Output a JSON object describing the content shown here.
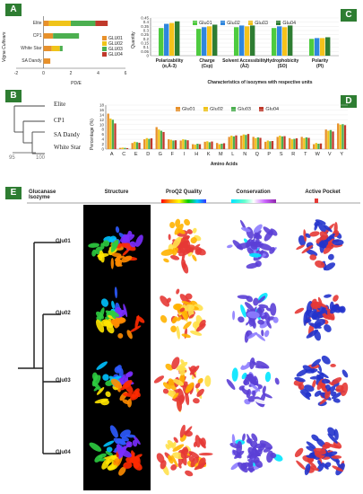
{
  "panel_a": {
    "label": "A",
    "ylabel": "Vigna Cultivars",
    "xlabel": "PD/E",
    "xticks": [
      "-2",
      "0",
      "2",
      "4",
      "6"
    ],
    "legend": [
      {
        "name": "GLU01",
        "color": "#e8912b"
      },
      {
        "name": "GLU02",
        "color": "#f0c419"
      },
      {
        "name": "GLU03",
        "color": "#4caf50"
      },
      {
        "name": "GLU04",
        "color": "#c0392b"
      }
    ],
    "chart_data": {
      "type": "bar",
      "orientation": "horizontal",
      "stacked": true,
      "categories": [
        "Elite",
        "CP1",
        "White Star",
        "SA Dandy"
      ],
      "xlim": [
        -2,
        6
      ],
      "series": [
        {
          "name": "GLU01",
          "values": [
            0.4,
            0.7,
            0.6,
            0.5
          ]
        },
        {
          "name": "GLU02",
          "values": [
            1.6,
            0.0,
            0.6,
            0.0
          ]
        },
        {
          "name": "GLU03",
          "values": [
            1.8,
            1.9,
            0.2,
            0.0
          ]
        },
        {
          "name": "GLU04",
          "values": [
            0.9,
            0.0,
            0.0,
            0.0
          ]
        }
      ]
    }
  },
  "panel_b": {
    "label": "B",
    "leaves": [
      "Elite",
      "CP1",
      "SA Dandy",
      "White Star"
    ],
    "scale": [
      "95",
      "100"
    ]
  },
  "panel_c": {
    "label": "C",
    "ylabel": "Quantity",
    "xlabel": "Characteristics of isozymes with respective units",
    "yticks": [
      "0",
      "0.05",
      "0.1",
      "0.15",
      "0.2",
      "0.25",
      "0.3",
      "0.35",
      "0.4",
      "0.45"
    ],
    "legend": [
      {
        "name": "Glu01",
        "color": "#4ecb3f"
      },
      {
        "name": "Glu02",
        "color": "#2e86de"
      },
      {
        "name": "Glu03",
        "color": "#f5c21b"
      },
      {
        "name": "Glu04",
        "color": "#2e7d32"
      }
    ],
    "chart_data": {
      "type": "bar",
      "categories": [
        "Polarizability (α,Å-3)",
        "Charge (Cεp)",
        "Solvent Accessibility (Å2)",
        "Hydrophobicity (SO)",
        "Polarity (PI)"
      ],
      "ylim": [
        0,
        0.45
      ],
      "series": [
        {
          "name": "Glu01",
          "values": [
            0.33,
            0.32,
            0.34,
            0.33,
            0.2
          ]
        },
        {
          "name": "Glu02",
          "values": [
            0.38,
            0.34,
            0.36,
            0.35,
            0.21
          ]
        },
        {
          "name": "Glu03",
          "values": [
            0.39,
            0.35,
            0.35,
            0.34,
            0.21
          ]
        },
        {
          "name": "Glu04",
          "values": [
            0.41,
            0.37,
            0.36,
            0.36,
            0.22
          ]
        }
      ]
    }
  },
  "panel_d": {
    "label": "D",
    "ylabel": "Percentage (%)",
    "xlabel": "Amino Acids",
    "yticks": [
      "0",
      "2",
      "4",
      "6",
      "8",
      "10",
      "12",
      "14",
      "16",
      "18"
    ],
    "legend": [
      {
        "name": "Glu01",
        "color": "#e8912b"
      },
      {
        "name": "Glu02",
        "color": "#f0c419"
      },
      {
        "name": "Glu03",
        "color": "#4caf50"
      },
      {
        "name": "Glu04",
        "color": "#c0392b"
      }
    ],
    "chart_data": {
      "type": "bar",
      "categories": [
        "A",
        "C",
        "E",
        "D",
        "G",
        "F",
        "I",
        "H",
        "K",
        "M",
        "L",
        "N",
        "Q",
        "P",
        "S",
        "R",
        "T",
        "W",
        "V",
        "Y"
      ],
      "ylim": [
        0,
        18
      ],
      "series": [
        {
          "name": "Glu01",
          "values": [
            14.5,
            0.5,
            2.5,
            4.0,
            9.0,
            4.0,
            3.5,
            2.0,
            3.0,
            2.5,
            5.0,
            5.5,
            5.0,
            3.0,
            5.0,
            4.5,
            5.0,
            2.0,
            8.0,
            10.5
          ]
        },
        {
          "name": "Glu02",
          "values": [
            12.5,
            0.6,
            3.0,
            4.5,
            8.0,
            3.8,
            4.0,
            1.8,
            3.2,
            2.0,
            5.5,
            6.0,
            4.5,
            3.5,
            5.5,
            4.0,
            4.5,
            2.5,
            7.5,
            10.0
          ]
        },
        {
          "name": "Glu03",
          "values": [
            12.0,
            0.5,
            2.8,
            4.2,
            7.5,
            3.5,
            3.8,
            2.2,
            2.8,
            2.2,
            5.2,
            5.8,
            4.8,
            3.2,
            5.2,
            4.2,
            4.8,
            2.2,
            7.8,
            10.2
          ]
        },
        {
          "name": "Glu04",
          "values": [
            10.5,
            0.4,
            2.6,
            4.4,
            7.0,
            3.6,
            3.6,
            2.0,
            3.1,
            2.4,
            5.6,
            6.2,
            4.6,
            3.3,
            5.3,
            4.4,
            4.6,
            2.3,
            7.2,
            9.8
          ]
        }
      ]
    }
  },
  "panel_e": {
    "label": "E",
    "headers": {
      "isozyme": "Glucanase Isozyme",
      "structure": "Structure",
      "proq": "ProQ2 Quality",
      "conservation": "Conservation",
      "pocket": "Active Pocket"
    },
    "rows": [
      {
        "label": "Glu01"
      },
      {
        "label": "Glu02"
      },
      {
        "label": "Glu03"
      },
      {
        "label": "Glu04"
      }
    ]
  }
}
